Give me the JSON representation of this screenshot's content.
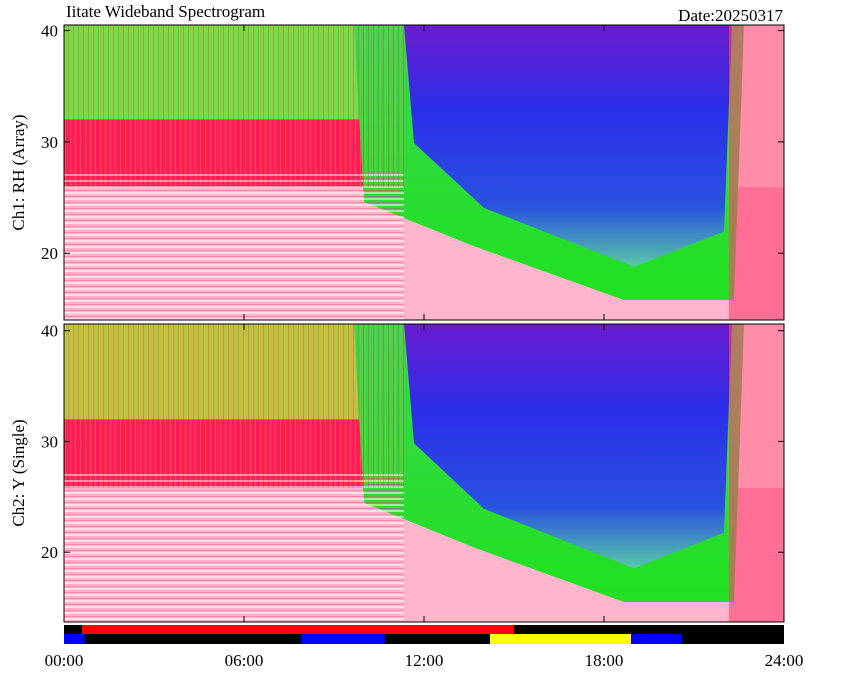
{
  "chart_data": {
    "type": "spectrogram",
    "title": "Iitate Wideband Spectrogram",
    "date": "Date:20250317",
    "xlim": [
      0,
      24
    ],
    "xticks": [
      {
        "value": 0,
        "label": "00:00"
      },
      {
        "value": 6,
        "label": "06:00"
      },
      {
        "value": 12,
        "label": "12:00"
      },
      {
        "value": 18,
        "label": "18:00"
      },
      {
        "value": 24,
        "label": "24:00"
      }
    ],
    "panels": [
      {
        "ylabel": "Ch1: RH (Array)",
        "ylim": [
          14,
          40.5
        ],
        "yticks": [
          20,
          30,
          40
        ]
      },
      {
        "ylabel": "Ch2: Y (Single)",
        "ylim": [
          13.7,
          40.6
        ],
        "yticks": [
          20,
          30,
          40
        ]
      }
    ],
    "status_bars": [
      [
        {
          "start": 0,
          "end": 0.6,
          "color": "#000000"
        },
        {
          "start": 0.6,
          "end": 15.0,
          "color": "#ff0000"
        },
        {
          "start": 15.0,
          "end": 24,
          "color": "#000000"
        }
      ],
      [
        {
          "start": 0,
          "end": 0.7,
          "color": "#0000ff"
        },
        {
          "start": 0.7,
          "end": 7.9,
          "color": "#000000"
        },
        {
          "start": 7.9,
          "end": 10.7,
          "color": "#0000ff"
        },
        {
          "start": 10.7,
          "end": 14.2,
          "color": "#000000"
        },
        {
          "start": 14.2,
          "end": 18.9,
          "color": "#ffff00"
        },
        {
          "start": 18.9,
          "end": 20.6,
          "color": "#0000ff"
        },
        {
          "start": 20.6,
          "end": 24,
          "color": "#000000"
        }
      ]
    ]
  }
}
